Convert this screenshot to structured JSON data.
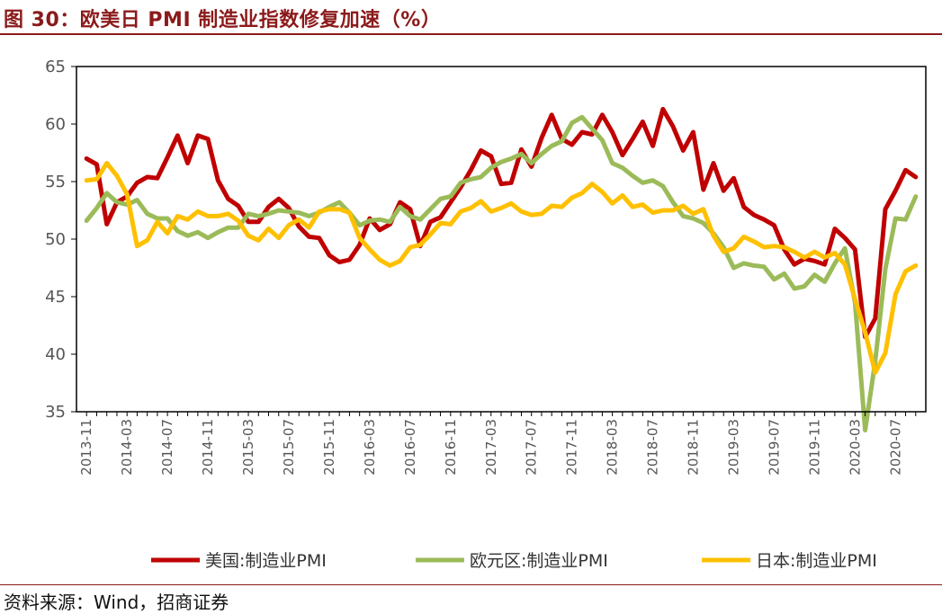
{
  "figure": {
    "title": "图 30：欧美日 PMI 制造业指数修复加速（%）",
    "source": "资料来源：Wind，招商证券"
  },
  "chart_data": {
    "type": "line",
    "xlabel": "",
    "ylabel": "",
    "ylim": [
      35,
      65
    ],
    "yticks": [
      "35",
      "40",
      "45",
      "50",
      "55",
      "60",
      "65"
    ],
    "grid": false,
    "legend_position": "bottom",
    "x": [
      "2013-11",
      "2013-12",
      "2014-01",
      "2014-02",
      "2014-03",
      "2014-04",
      "2014-05",
      "2014-06",
      "2014-07",
      "2014-08",
      "2014-09",
      "2014-10",
      "2014-11",
      "2014-12",
      "2015-01",
      "2015-02",
      "2015-03",
      "2015-04",
      "2015-05",
      "2015-06",
      "2015-07",
      "2015-08",
      "2015-09",
      "2015-10",
      "2015-11",
      "2015-12",
      "2016-01",
      "2016-02",
      "2016-03",
      "2016-04",
      "2016-05",
      "2016-06",
      "2016-07",
      "2016-08",
      "2016-09",
      "2016-10",
      "2016-11",
      "2016-12",
      "2017-01",
      "2017-02",
      "2017-03",
      "2017-04",
      "2017-05",
      "2017-06",
      "2017-07",
      "2017-08",
      "2017-09",
      "2017-10",
      "2017-11",
      "2017-12",
      "2018-01",
      "2018-02",
      "2018-03",
      "2018-04",
      "2018-05",
      "2018-06",
      "2018-07",
      "2018-08",
      "2018-09",
      "2018-10",
      "2018-11",
      "2018-12",
      "2019-01",
      "2019-02",
      "2019-03",
      "2019-04",
      "2019-05",
      "2019-06",
      "2019-07",
      "2019-08",
      "2019-09",
      "2019-10",
      "2019-11",
      "2019-12",
      "2020-01",
      "2020-02",
      "2020-03",
      "2020-04",
      "2020-05",
      "2020-06",
      "2020-07",
      "2020-08",
      "2020-09"
    ],
    "xticks": [
      "2013-11",
      "2014-03",
      "2014-07",
      "2014-11",
      "2015-03",
      "2015-07",
      "2015-11",
      "2016-03",
      "2016-07",
      "2016-11",
      "2017-03",
      "2017-07",
      "2017-11",
      "2018-03",
      "2018-07",
      "2018-11",
      "2019-03",
      "2019-07",
      "2019-11",
      "2020-03",
      "2020-07"
    ],
    "series": [
      {
        "name": "美国:制造业PMI",
        "color": "#C00000",
        "values": [
          57.0,
          56.5,
          51.3,
          53.2,
          53.7,
          54.9,
          55.4,
          55.3,
          57.1,
          59.0,
          56.6,
          59.0,
          58.7,
          55.1,
          53.5,
          52.9,
          51.5,
          51.5,
          52.8,
          53.5,
          52.7,
          51.1,
          50.2,
          50.1,
          48.6,
          48.0,
          48.2,
          49.5,
          51.8,
          50.8,
          51.3,
          53.2,
          52.6,
          49.4,
          51.5,
          51.9,
          53.2,
          54.5,
          56.0,
          57.7,
          57.2,
          54.8,
          54.9,
          57.8,
          56.3,
          58.8,
          60.8,
          58.7,
          58.2,
          59.3,
          59.1,
          60.8,
          59.3,
          57.3,
          58.7,
          60.2,
          58.1,
          61.3,
          59.8,
          57.7,
          59.3,
          54.3,
          56.6,
          54.2,
          55.3,
          52.8,
          52.1,
          51.7,
          51.2,
          49.1,
          47.8,
          48.3,
          48.1,
          47.8,
          50.9,
          50.1,
          49.1,
          41.5,
          43.1,
          52.6,
          54.2,
          56.0,
          55.4
        ]
      },
      {
        "name": "欧元区:制造业PMI",
        "color": "#9BBB59",
        "values": [
          51.6,
          52.7,
          54.0,
          53.2,
          53.0,
          53.4,
          52.2,
          51.8,
          51.8,
          50.7,
          50.3,
          50.6,
          50.1,
          50.6,
          51.0,
          51.0,
          52.2,
          52.0,
          52.2,
          52.5,
          52.4,
          52.3,
          52.0,
          52.3,
          52.8,
          53.2,
          52.3,
          51.2,
          51.6,
          51.7,
          51.5,
          52.8,
          52.0,
          51.7,
          52.6,
          53.5,
          53.7,
          54.9,
          55.2,
          55.4,
          56.2,
          56.7,
          57.0,
          57.4,
          56.6,
          57.4,
          58.1,
          58.5,
          60.1,
          60.6,
          59.6,
          58.6,
          56.6,
          56.2,
          55.5,
          54.9,
          55.1,
          54.6,
          53.2,
          52.0,
          51.8,
          51.4,
          50.5,
          49.3,
          47.5,
          47.9,
          47.7,
          47.6,
          46.5,
          47.0,
          45.7,
          45.9,
          46.9,
          46.3,
          47.9,
          49.2,
          44.5,
          33.4,
          39.4,
          47.4,
          51.8,
          51.7,
          53.7
        ]
      },
      {
        "name": "日本:制造业PMI",
        "color": "#FFC000",
        "values": [
          55.1,
          55.2,
          56.6,
          55.5,
          53.9,
          49.4,
          49.9,
          51.5,
          50.5,
          52.0,
          51.7,
          52.4,
          52.0,
          52.0,
          52.2,
          51.6,
          50.3,
          49.9,
          50.9,
          50.1,
          51.2,
          51.7,
          51.0,
          52.4,
          52.6,
          52.6,
          52.3,
          50.1,
          49.1,
          48.2,
          47.7,
          48.1,
          49.3,
          49.5,
          50.4,
          51.4,
          51.3,
          52.4,
          52.7,
          53.3,
          52.4,
          52.7,
          53.1,
          52.4,
          52.1,
          52.2,
          52.9,
          52.8,
          53.6,
          54.0,
          54.8,
          54.1,
          53.1,
          53.8,
          52.8,
          53.0,
          52.3,
          52.5,
          52.5,
          52.9,
          52.2,
          52.6,
          50.3,
          48.9,
          49.2,
          50.2,
          49.8,
          49.3,
          49.4,
          49.3,
          48.9,
          48.4,
          48.9,
          48.4,
          48.8,
          47.8,
          44.8,
          41.9,
          38.4,
          40.1,
          45.2,
          47.2,
          47.7
        ]
      }
    ]
  }
}
